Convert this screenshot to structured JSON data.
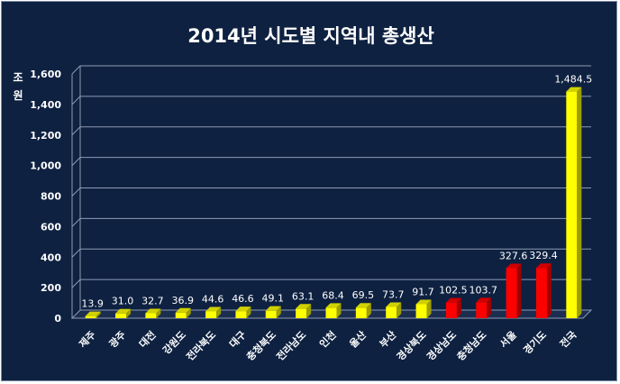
{
  "chart_data": {
    "type": "bar",
    "title": "2014년 시도별 지역내 총생산",
    "ylabel": "조 원",
    "ylim": [
      0,
      1600
    ],
    "yticks": [
      "0",
      "200",
      "400",
      "600",
      "800",
      "1,000",
      "1,200",
      "1,400",
      "1,600"
    ],
    "grid": true,
    "categories": [
      "제주",
      "광주",
      "대전",
      "강원도",
      "전라북도",
      "대구",
      "충청북도",
      "전라남도",
      "인천",
      "울산",
      "부산",
      "경상북도",
      "경상남도",
      "충청남도",
      "서울",
      "경기도",
      "전국"
    ],
    "values": [
      13.9,
      31.0,
      32.7,
      36.9,
      44.6,
      46.6,
      49.1,
      63.1,
      68.4,
      69.5,
      73.7,
      91.7,
      102.5,
      103.7,
      327.6,
      329.4,
      1484.5
    ],
    "labels": [
      "13.9",
      "31.0",
      "32.7",
      "36.9",
      "44.6",
      "46.6",
      "49.1",
      "63.1",
      "68.4",
      "69.5",
      "73.7",
      "91.7",
      "102.5",
      "103.7",
      "327.6",
      "329.4",
      "1,484.5"
    ],
    "colors": [
      "#ffff00",
      "#ffff00",
      "#ffff00",
      "#ffff00",
      "#ffff00",
      "#ffff00",
      "#ffff00",
      "#ffff00",
      "#ffff00",
      "#ffff00",
      "#ffff00",
      "#ffff00",
      "#ff0000",
      "#ff0000",
      "#ff0000",
      "#ff0000",
      "#ffff00"
    ]
  }
}
